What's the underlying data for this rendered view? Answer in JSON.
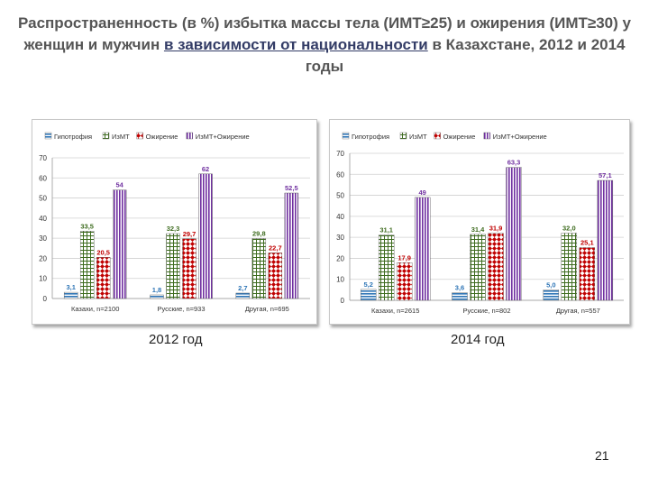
{
  "slide": {
    "title_part1": "Распространенность (в %) избытка массы тела (ИМТ≥25) и ожирения (ИМТ≥30) у женщин и мужчин ",
    "title_part2": "в зависимости от национальности",
    "title_part3": " в Казахстане, 2012 и 2014 годы",
    "page_number": "21"
  },
  "colors": {
    "Гипотрофия": "#2e75b6",
    "ИзМТ": "#70ad47",
    "Ожирение": "#c00000",
    "ИзМТ+Ожирение": "#7030a0"
  },
  "chart_data": [
    {
      "type": "bar",
      "caption": "2012 год",
      "categories": [
        "Казахи, n=2100",
        "Русские, n=933",
        "Другая, n=695"
      ],
      "series": [
        {
          "name": "Гипотрофия",
          "values": [
            3.1,
            1.8,
            2.7
          ],
          "labels": [
            "3,1",
            "1,8",
            "2,7"
          ]
        },
        {
          "name": "ИзМТ",
          "values": [
            33.5,
            32.3,
            29.8
          ],
          "labels": [
            "33,5",
            "32,3",
            "29,8"
          ]
        },
        {
          "name": "Ожирение",
          "values": [
            20.5,
            29.7,
            22.7
          ],
          "labels": [
            "20,5",
            "29,7",
            "22,7"
          ]
        },
        {
          "name": "ИзМТ+Ожирение",
          "values": [
            54,
            62,
            52.5
          ],
          "labels": [
            "54",
            "62",
            "52,5"
          ]
        }
      ],
      "yticks": [
        "0",
        "10",
        "20",
        "30",
        "40",
        "50",
        "60",
        "70"
      ],
      "ylim": [
        0,
        70
      ],
      "grid": true,
      "legend": "top"
    },
    {
      "type": "bar",
      "caption": "2014 год",
      "categories": [
        "Казахи, n=2615",
        "Русские, n=802",
        "Другая, n=557"
      ],
      "series": [
        {
          "name": "Гипотрофия",
          "values": [
            5.2,
            3.6,
            5.0
          ],
          "labels": [
            "5,2",
            "3,6",
            "5,0"
          ]
        },
        {
          "name": "ИзМТ",
          "values": [
            31.1,
            31.4,
            32.0
          ],
          "labels": [
            "31,1",
            "31,4",
            "32,0"
          ]
        },
        {
          "name": "Ожирение",
          "values": [
            17.9,
            31.9,
            25.1
          ],
          "labels": [
            "17,9",
            "31,9",
            "25,1"
          ]
        },
        {
          "name": "ИзМТ+Ожирение",
          "values": [
            49,
            63.3,
            57.1
          ],
          "labels": [
            "49",
            "63,3",
            "57,1"
          ]
        }
      ],
      "yticks": [
        "0",
        "10",
        "20",
        "30",
        "40",
        "50",
        "60",
        "70"
      ],
      "ylim": [
        0,
        70
      ],
      "grid": true,
      "legend": "top"
    }
  ]
}
